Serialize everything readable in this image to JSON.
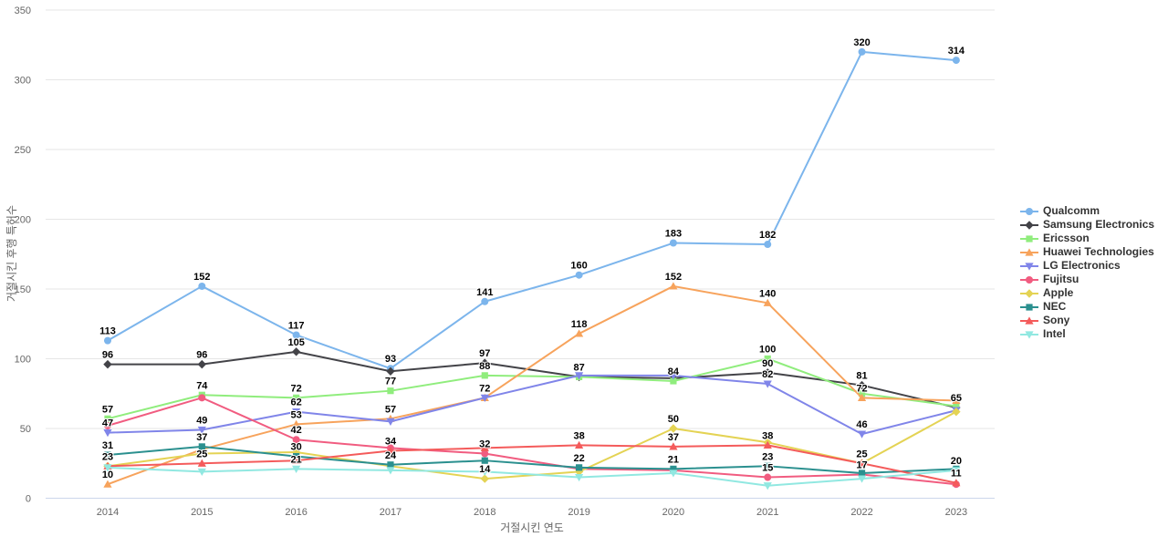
{
  "chart_data": {
    "type": "line",
    "title": "",
    "x": [
      "2014",
      "2015",
      "2016",
      "2017",
      "2018",
      "2019",
      "2020",
      "2021",
      "2022",
      "2023"
    ],
    "xlabel": "거절시킨 연도",
    "ylabel": "거절시킨 후행 특허수",
    "ylim": [
      0,
      350
    ],
    "yticks": [
      0,
      50,
      100,
      150,
      200,
      250,
      300,
      350
    ],
    "grid": "horizontal-only",
    "legend_position": "right-middle",
    "series": [
      {
        "name": "Qualcomm",
        "color": "#7cb5ec",
        "marker": "circle",
        "values": [
          113,
          152,
          117,
          93,
          141,
          160,
          183,
          182,
          320,
          314
        ],
        "labels": [
          113,
          152,
          117,
          93,
          141,
          160,
          183,
          182,
          320,
          314
        ]
      },
      {
        "name": "Samsung Electronics",
        "color": "#434348",
        "marker": "diamond",
        "values": [
          96,
          96,
          105,
          91,
          97,
          87,
          86,
          90,
          81,
          65
        ],
        "labels": [
          96,
          96,
          105,
          null,
          97,
          87,
          null,
          90,
          81,
          65
        ]
      },
      {
        "name": "Ericsson",
        "color": "#90ed7d",
        "marker": "square",
        "values": [
          57,
          74,
          72,
          77,
          88,
          87,
          84,
          100,
          75,
          66
        ],
        "labels": [
          57,
          74,
          72,
          77,
          88,
          null,
          84,
          100,
          null,
          null
        ]
      },
      {
        "name": "Huawei Technologies",
        "color": "#f7a35c",
        "marker": "triangle",
        "values": [
          10,
          35,
          53,
          57,
          72,
          118,
          152,
          140,
          72,
          70
        ],
        "labels": [
          10,
          null,
          53,
          57,
          null,
          118,
          152,
          140,
          72,
          null
        ]
      },
      {
        "name": "LG Electronics",
        "color": "#8085e9",
        "marker": "triangle-down",
        "values": [
          47,
          49,
          62,
          55,
          72,
          88,
          88,
          82,
          46,
          63
        ],
        "labels": [
          47,
          49,
          62,
          null,
          72,
          null,
          null,
          82,
          46,
          null
        ]
      },
      {
        "name": "Fujitsu",
        "color": "#f15c80",
        "marker": "circle",
        "values": [
          52,
          72,
          42,
          36,
          32,
          21,
          20,
          15,
          17,
          10
        ],
        "labels": [
          null,
          null,
          42,
          null,
          32,
          null,
          null,
          15,
          17,
          null
        ]
      },
      {
        "name": "Apple",
        "color": "#e4d354",
        "marker": "diamond",
        "values": [
          23,
          32,
          33,
          23,
          14,
          19,
          50,
          40,
          25,
          62
        ],
        "labels": [
          23,
          null,
          null,
          null,
          14,
          null,
          50,
          null,
          25,
          null
        ]
      },
      {
        "name": "NEC",
        "color": "#2b908f",
        "marker": "square",
        "values": [
          31,
          37,
          30,
          24,
          27,
          22,
          21,
          23,
          18,
          21
        ],
        "labels": [
          31,
          37,
          30,
          24,
          null,
          22,
          21,
          23,
          null,
          null
        ]
      },
      {
        "name": "Sony",
        "color": "#f45b5b",
        "marker": "triangle",
        "values": [
          23,
          25,
          27,
          34,
          36,
          38,
          37,
          38,
          25,
          11
        ],
        "labels": [
          23,
          25,
          null,
          34,
          null,
          38,
          37,
          38,
          null,
          11
        ]
      },
      {
        "name": "Intel",
        "color": "#91e8e1",
        "marker": "triangle-down",
        "values": [
          22,
          19,
          21,
          20,
          19,
          15,
          18,
          9,
          14,
          20
        ],
        "labels": [
          null,
          null,
          21,
          null,
          null,
          null,
          null,
          null,
          null,
          20
        ]
      }
    ]
  },
  "colors": {
    "background": "#ffffff",
    "grid": "#e6e6e6",
    "axis_line": "#ccd6eb",
    "tick_text": "#666666",
    "data_label": "#000000",
    "legend_text": "#333333"
  }
}
